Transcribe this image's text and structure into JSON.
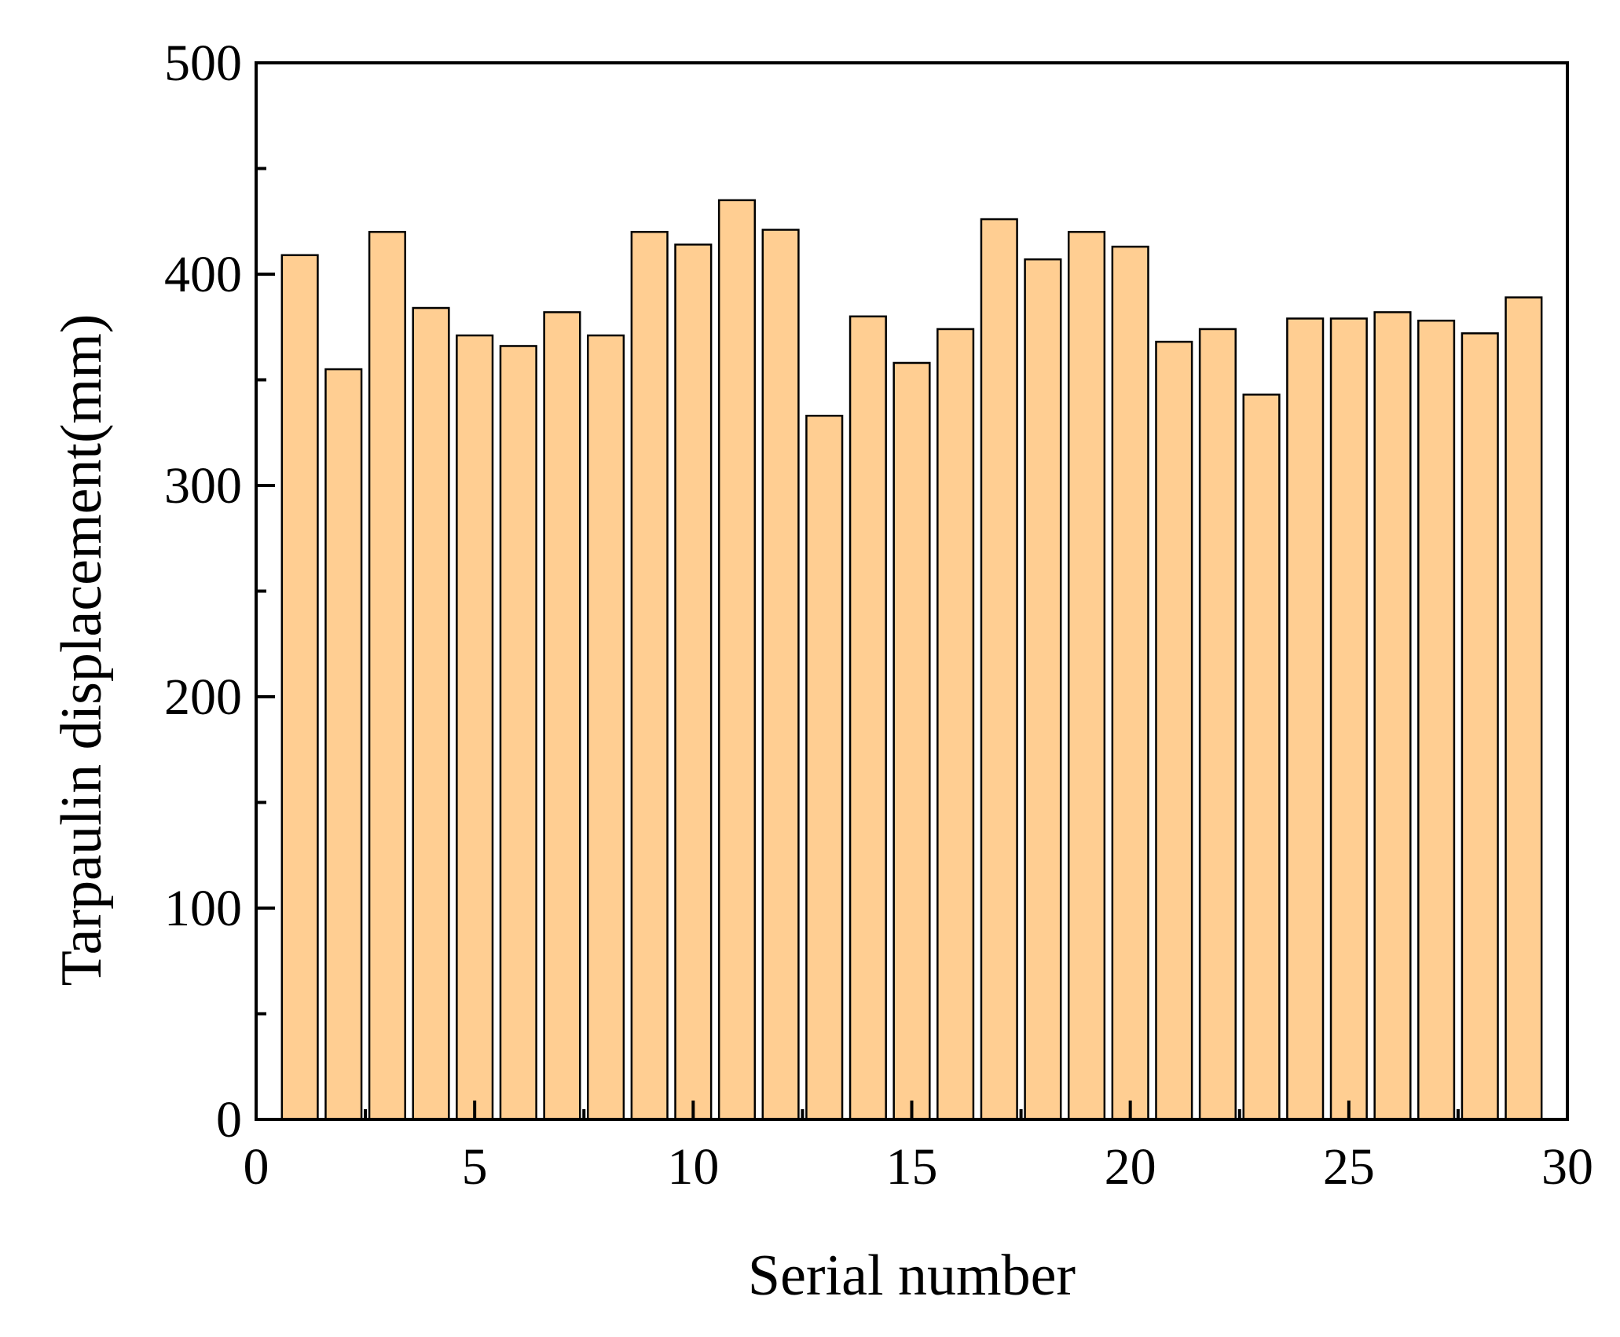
{
  "chart_data": {
    "type": "bar",
    "title": "",
    "xlabel": "Serial number",
    "ylabel": "Tarpaulin displacement(mm)",
    "x": [
      1,
      2,
      3,
      4,
      5,
      6,
      7,
      8,
      9,
      10,
      11,
      12,
      13,
      14,
      15,
      16,
      17,
      18,
      19,
      20,
      21,
      22,
      23,
      24,
      25,
      26,
      27,
      28,
      29
    ],
    "values": [
      409,
      355,
      420,
      384,
      371,
      366,
      382,
      371,
      420,
      414,
      435,
      421,
      333,
      380,
      358,
      374,
      426,
      407,
      420,
      413,
      368,
      374,
      343,
      379,
      379,
      382,
      378,
      372,
      389
    ],
    "xlim": [
      0,
      30
    ],
    "ylim": [
      0,
      500
    ],
    "xticks": [
      "0",
      "5",
      "10",
      "15",
      "20",
      "25",
      "30"
    ],
    "yticks": [
      "0",
      "100",
      "200",
      "300",
      "400",
      "500"
    ],
    "bar_color": "#FFCE92",
    "bar_edge_color": "#000000",
    "grid": false,
    "legend": "none"
  }
}
